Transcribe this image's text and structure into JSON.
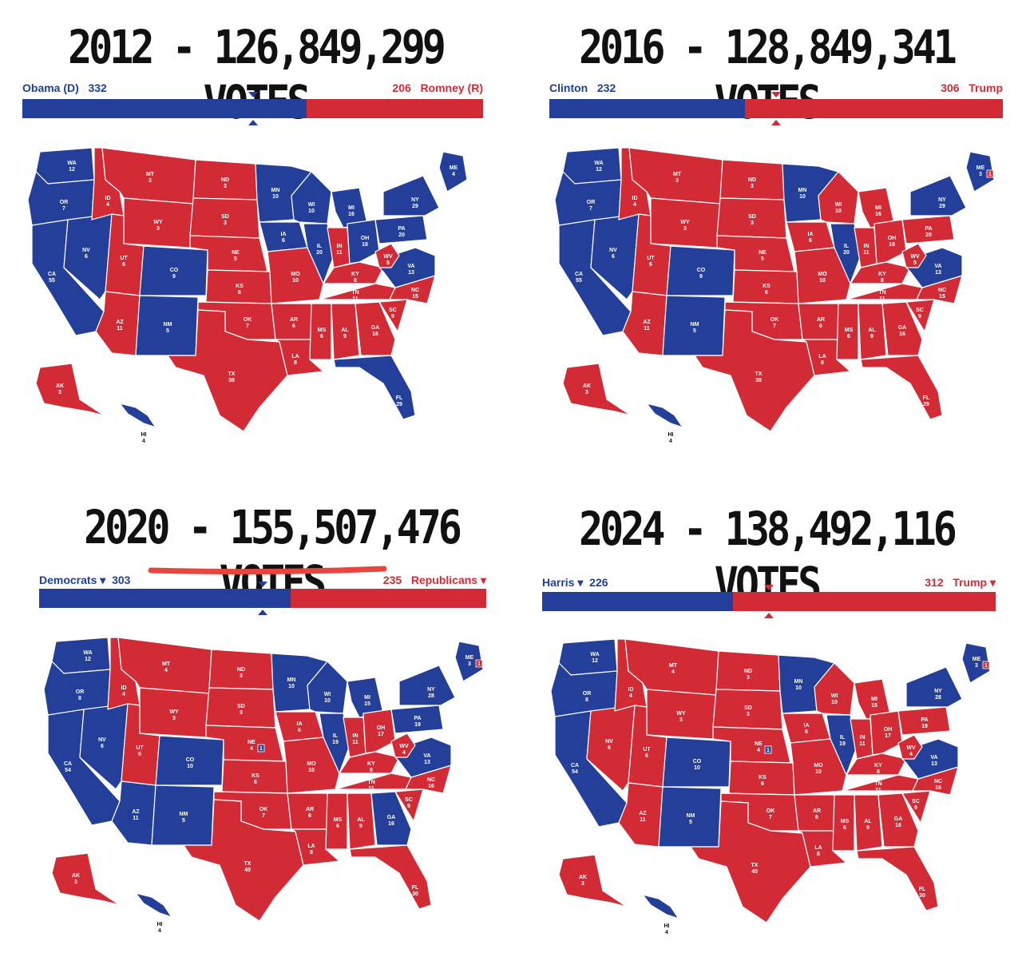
{
  "colors": {
    "dem": "#233f9a",
    "rep": "#d22b36",
    "border": "#ffffff"
  },
  "panels": [
    {
      "year_title": "2012 - 126,849,299 VOTES",
      "dem_label": "Obama (D)",
      "dem_votes": "332",
      "rep_votes": "206",
      "rep_label": "Romney (R)",
      "dem_fraction": 0.617,
      "winner_share_marker": "center",
      "states": {
        "WA": "D",
        "OR": "D",
        "CA": "D",
        "NV": "D",
        "ID": "R",
        "MT": "R",
        "WY": "R",
        "UT": "R",
        "AZ": "R",
        "CO": "D",
        "NM": "D",
        "ND": "R",
        "SD": "R",
        "NE": "R",
        "KS": "R",
        "OK": "R",
        "TX": "R",
        "MN": "D",
        "IA": "D",
        "MO": "R",
        "AR": "R",
        "LA": "R",
        "WI": "D",
        "IL": "D",
        "MI": "D",
        "IN": "R",
        "OH": "D",
        "KY": "R",
        "TN": "R",
        "MS": "R",
        "AL": "R",
        "GA": "R",
        "FL": "D",
        "SC": "R",
        "NC": "R",
        "VA": "D",
        "WV": "R",
        "PA": "D",
        "NY": "D",
        "ME": "D",
        "NE_NORTH": "D",
        "AK": "R",
        "HI": "D"
      },
      "ev": {
        "WA": "12",
        "OR": "7",
        "CA": "55",
        "NV": "6",
        "ID": "4",
        "MT": "3",
        "WY": "3",
        "UT": "6",
        "AZ": "11",
        "CO": "9",
        "NM": "5",
        "ND": "3",
        "SD": "3",
        "NE": "5",
        "KS": "6",
        "OK": "7",
        "TX": "38",
        "MN": "10",
        "IA": "6",
        "MO": "10",
        "AR": "6",
        "LA": "8",
        "WI": "10",
        "IL": "20",
        "MI": "16",
        "IN": "11",
        "OH": "18",
        "KY": "8",
        "TN": "11",
        "MS": "6",
        "AL": "9",
        "GA": "16",
        "FL": "29",
        "SC": "9",
        "NC": "15",
        "VA": "13",
        "WV": "5",
        "PA": "20",
        "NY": "29",
        "ME": "4",
        "NE_NORTH": "",
        "AK": "3",
        "HI": "4"
      },
      "split_labels": {}
    },
    {
      "year_title": "2016 - 128,849,341 VOTES",
      "dem_label": "Clinton",
      "dem_votes": "232",
      "rep_votes": "306",
      "rep_label": "Trump",
      "dem_fraction": 0.431,
      "states": {
        "WA": "D",
        "OR": "D",
        "CA": "D",
        "NV": "D",
        "ID": "R",
        "MT": "R",
        "WY": "R",
        "UT": "R",
        "AZ": "R",
        "CO": "D",
        "NM": "D",
        "ND": "R",
        "SD": "R",
        "NE": "R",
        "KS": "R",
        "OK": "R",
        "TX": "R",
        "MN": "D",
        "IA": "R",
        "MO": "R",
        "AR": "R",
        "LA": "R",
        "WI": "R",
        "IL": "D",
        "MI": "R",
        "IN": "R",
        "OH": "R",
        "KY": "R",
        "TN": "R",
        "MS": "R",
        "AL": "R",
        "GA": "R",
        "FL": "R",
        "SC": "R",
        "NC": "R",
        "VA": "D",
        "WV": "R",
        "PA": "R",
        "NY": "D",
        "ME": "D",
        "NE_NORTH": "D",
        "AK": "R",
        "HI": "D"
      },
      "ev": {
        "WA": "12",
        "OR": "7",
        "CA": "55",
        "NV": "6",
        "ID": "4",
        "MT": "3",
        "WY": "3",
        "UT": "6",
        "AZ": "11",
        "CO": "9",
        "NM": "5",
        "ND": "3",
        "SD": "3",
        "NE": "5",
        "KS": "6",
        "OK": "7",
        "TX": "38",
        "MN": "10",
        "IA": "6",
        "MO": "10",
        "AR": "6",
        "LA": "8",
        "WI": "10",
        "IL": "20",
        "MI": "16",
        "IN": "11",
        "OH": "18",
        "KY": "8",
        "TN": "11",
        "MS": "6",
        "AL": "9",
        "GA": "16",
        "FL": "29",
        "SC": "9",
        "NC": "15",
        "VA": "13",
        "WV": "5",
        "PA": "20",
        "NY": "29",
        "ME": "3",
        "NE_NORTH": "",
        "AK": "3",
        "HI": "4"
      },
      "split_labels": {
        "ME": "1"
      }
    },
    {
      "year_title": "2020 - 155,507,476 VOTES",
      "dem_label": "Democrats",
      "dem_votes": "303",
      "rep_votes": "235",
      "rep_label": "Republicans",
      "dem_fraction": 0.563,
      "underline": true,
      "states": {
        "WA": "D",
        "OR": "D",
        "CA": "D",
        "NV": "D",
        "ID": "R",
        "MT": "R",
        "WY": "R",
        "UT": "R",
        "AZ": "D",
        "CO": "D",
        "NM": "D",
        "ND": "R",
        "SD": "R",
        "NE": "R",
        "KS": "R",
        "OK": "R",
        "TX": "R",
        "MN": "D",
        "IA": "R",
        "MO": "R",
        "AR": "R",
        "LA": "R",
        "WI": "D",
        "IL": "D",
        "MI": "D",
        "IN": "R",
        "OH": "R",
        "KY": "R",
        "TN": "R",
        "MS": "R",
        "AL": "R",
        "GA": "D",
        "FL": "R",
        "SC": "R",
        "NC": "R",
        "VA": "D",
        "WV": "R",
        "PA": "D",
        "NY": "D",
        "ME": "D",
        "NE_NORTH": "D",
        "AK": "R",
        "HI": "D"
      },
      "ev": {
        "WA": "12",
        "OR": "8",
        "CA": "54",
        "NV": "6",
        "ID": "4",
        "MT": "4",
        "WY": "3",
        "UT": "6",
        "AZ": "11",
        "CO": "10",
        "NM": "5",
        "ND": "3",
        "SD": "3",
        "NE": "4",
        "KS": "6",
        "OK": "7",
        "TX": "40",
        "MN": "10",
        "IA": "6",
        "MO": "10",
        "AR": "6",
        "LA": "8",
        "WI": "10",
        "IL": "19",
        "MI": "15",
        "IN": "11",
        "OH": "17",
        "KY": "8",
        "TN": "11",
        "MS": "6",
        "AL": "9",
        "GA": "16",
        "FL": "30",
        "SC": "9",
        "NC": "16",
        "VA": "13",
        "WV": "4",
        "PA": "19",
        "NY": "28",
        "ME": "3",
        "NE_NORTH": "",
        "AK": "3",
        "HI": "4"
      },
      "split_labels": {
        "ME": "1",
        "NE": "1"
      }
    },
    {
      "year_title": "2024 - 138,492,116 VOTES",
      "dem_label": "Harris",
      "dem_votes": "226",
      "rep_votes": "312",
      "rep_label": "Trump",
      "dem_fraction": 0.42,
      "states": {
        "WA": "D",
        "OR": "D",
        "CA": "D",
        "NV": "R",
        "ID": "R",
        "MT": "R",
        "WY": "R",
        "UT": "R",
        "AZ": "R",
        "CO": "D",
        "NM": "D",
        "ND": "R",
        "SD": "R",
        "NE": "R",
        "KS": "R",
        "OK": "R",
        "TX": "R",
        "MN": "D",
        "IA": "R",
        "MO": "R",
        "AR": "R",
        "LA": "R",
        "WI": "R",
        "IL": "D",
        "MI": "R",
        "IN": "R",
        "OH": "R",
        "KY": "R",
        "TN": "R",
        "MS": "R",
        "AL": "R",
        "GA": "R",
        "FL": "R",
        "SC": "R",
        "NC": "R",
        "VA": "D",
        "WV": "R",
        "PA": "R",
        "NY": "D",
        "ME": "D",
        "NE_NORTH": "D",
        "AK": "R",
        "HI": "D"
      },
      "ev": {
        "WA": "12",
        "OR": "8",
        "CA": "54",
        "NV": "6",
        "ID": "4",
        "MT": "4",
        "WY": "3",
        "UT": "6",
        "AZ": "11",
        "CO": "10",
        "NM": "5",
        "ND": "3",
        "SD": "3",
        "NE": "4",
        "KS": "6",
        "OK": "7",
        "TX": "40",
        "MN": "10",
        "IA": "6",
        "MO": "10",
        "AR": "6",
        "LA": "8",
        "WI": "10",
        "IL": "19",
        "MI": "15",
        "IN": "11",
        "OH": "17",
        "KY": "8",
        "TN": "11",
        "MS": "6",
        "AL": "9",
        "GA": "16",
        "FL": "30",
        "SC": "9",
        "NC": "16",
        "VA": "13",
        "WV": "4",
        "PA": "19",
        "NY": "28",
        "ME": "3",
        "NE_NORTH": "",
        "AK": "3",
        "HI": "4"
      },
      "split_labels": {
        "ME": "1",
        "NE": "1"
      }
    }
  ]
}
